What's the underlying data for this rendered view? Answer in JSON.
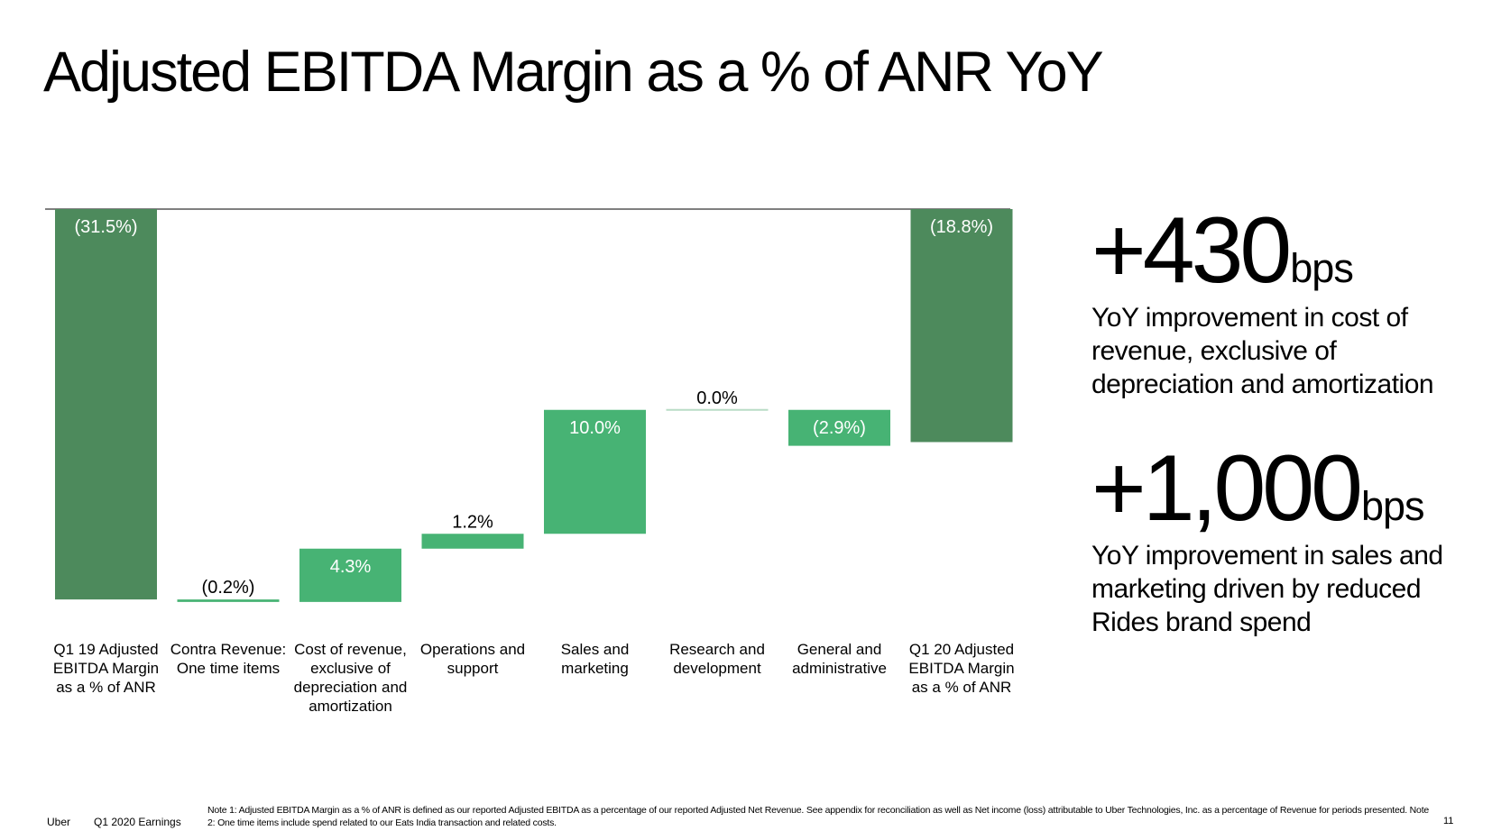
{
  "slide": {
    "title": "Adjusted EBITDA Margin as a % of ANR YoY",
    "footer": {
      "brand": "Uber",
      "event": "Q1 2020 Earnings",
      "note": "Note 1: Adjusted EBITDA Margin as a % of ANR is defined as our reported Adjusted EBITDA as a percentage of our reported Adjusted Net Revenue. See appendix for reconciliation as well as Net income (loss) attributable to Uber Technologies, Inc. as a percentage of Revenue for periods presented. Note 2: One time items include spend related to our Eats India transaction and related costs.",
      "page": "11"
    }
  },
  "stats": [
    {
      "value": "+430",
      "unit": "bps",
      "description": "YoY improvement in cost of revenue, exclusive of depreciation and amortization"
    },
    {
      "value": "+1,000",
      "unit": "bps",
      "description": "YoY improvement in sales and marketing driven by reduced Rides brand spend"
    }
  ],
  "chart_data": {
    "type": "bar",
    "subtype": "waterfall",
    "baseline": 0,
    "ylim": [
      -31.5,
      0
    ],
    "categories": [
      "Q1 19 Adjusted EBITDA Margin as a % of ANR",
      "Contra Revenue: One time items",
      "Cost of revenue, exclusive of depreciation and amortization",
      "Operations and support",
      "Sales and marketing",
      "Research and development",
      "General and administrative",
      "Q1 20 Adjusted EBITDA Margin as a % of ANR"
    ],
    "values": [
      -31.5,
      -0.2,
      4.3,
      1.2,
      10.0,
      0.0,
      -2.9,
      -18.8
    ],
    "kinds": [
      "total",
      "delta",
      "delta",
      "delta",
      "delta",
      "delta",
      "delta",
      "total"
    ],
    "data_labels": [
      "(31.5%)",
      "(0.2%)",
      "4.3%",
      "1.2%",
      "10.0%",
      "0.0%",
      "(2.9%)",
      "(18.8%)"
    ],
    "label_placement": [
      "inside",
      "above",
      "inside",
      "above",
      "inside",
      "above",
      "inside",
      "inside"
    ],
    "colors": {
      "total": "#4d8a5c",
      "delta": "#47b374",
      "baseline": "#555555"
    }
  }
}
